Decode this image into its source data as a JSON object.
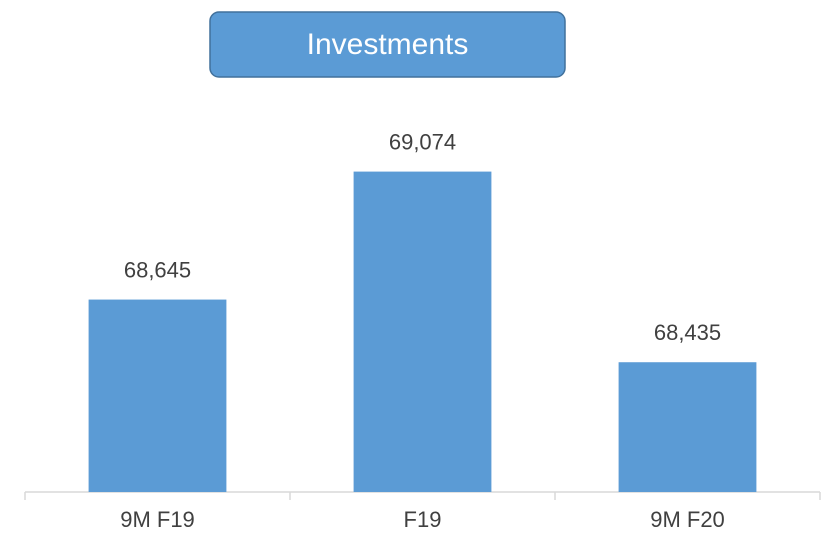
{
  "chart_data": {
    "type": "bar",
    "title": "Investments",
    "categories": [
      "9M F19",
      "F19",
      "9M F20"
    ],
    "values": [
      68645,
      69074,
      68435
    ],
    "value_labels": [
      "68,645",
      "69,074",
      "68,435"
    ],
    "color": "#5b9bd5",
    "ylim": [
      68000,
      69200
    ]
  }
}
